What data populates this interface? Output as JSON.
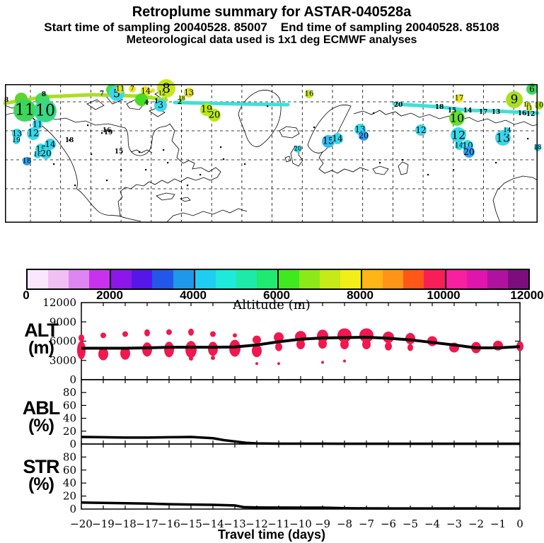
{
  "header": {
    "title": "Retroplume summary for ASTAR-040528a",
    "subtitle": "Start time of sampling 20040528. 85007    End time of sampling 20040528. 85108",
    "met_line": "Meteorological data used is 1x1 deg ECMWF analyses"
  },
  "colorbar": {
    "label": "Altitude (m)",
    "tick_labels": [
      "0",
      "2000",
      "4000",
      "6000",
      "8000",
      "10000",
      "12000"
    ],
    "colors": [
      "#fbe7fb",
      "#f2bff5",
      "#df85f2",
      "#c832ef",
      "#8d17e9",
      "#5517e9",
      "#2456e9",
      "#1f97ea",
      "#1fccf2",
      "#1fe9da",
      "#1fe9a6",
      "#1fe96e",
      "#3fe91f",
      "#8ce918",
      "#c6e918",
      "#f2ee18",
      "#ffb418",
      "#ff9518",
      "#ff5718",
      "#f81f58",
      "#f81fa0",
      "#e015ae",
      "#b012a0",
      "#7c0e7c"
    ]
  },
  "map": {
    "trajectories": [
      {
        "c": "#a8e020",
        "w": 5,
        "pts": [
          [
            0,
            27
          ],
          [
            55,
            18
          ],
          [
            125,
            15
          ],
          [
            190,
            17
          ],
          [
            228,
            22
          ]
        ]
      },
      {
        "c": "#3ee0d8",
        "w": 5,
        "pts": [
          [
            240,
            26
          ],
          [
            330,
            28
          ],
          [
            400,
            29
          ]
        ]
      },
      {
        "c": "#3ee0d8",
        "w": 5,
        "pts": [
          [
            550,
            28
          ],
          [
            613,
            32
          ],
          [
            653,
            37
          ],
          [
            693,
            38
          ],
          [
            753,
            41
          ]
        ]
      }
    ],
    "markers": [
      {
        "t": "",
        "x": 23,
        "y": 21,
        "r": 9,
        "c": "#5fd42f",
        "fs": 0
      },
      {
        "t": "",
        "x": 53,
        "y": 22,
        "r": 10,
        "c": "#46d963",
        "fs": 0
      },
      {
        "t": "11",
        "x": 28,
        "y": 37,
        "r": 16,
        "c": "#3cd75a",
        "fs": 22
      },
      {
        "t": "10",
        "x": 57,
        "y": 38,
        "r": 16,
        "c": "#38d987",
        "fs": 22
      },
      {
        "t": "11",
        "x": 46,
        "y": 57,
        "r": 7,
        "c": "#38d8ea",
        "fs": 11
      },
      {
        "t": "12",
        "x": 40,
        "y": 70,
        "r": 9,
        "c": "#38d8ea",
        "fs": 13
      },
      {
        "t": "13",
        "x": 17,
        "y": 70,
        "r": 7,
        "c": "#38d8ea",
        "fs": 11
      },
      {
        "t": "19",
        "x": 16,
        "y": 80,
        "r": 5,
        "c": "#38d8ea",
        "fs": 9
      },
      {
        "t": "14",
        "x": 64,
        "y": 85,
        "r": 8,
        "c": "#38d8ea",
        "fs": 12
      },
      {
        "t": "15",
        "x": 51,
        "y": 92,
        "r": 8,
        "c": "#38d8ea",
        "fs": 12
      },
      {
        "t": "16",
        "x": 46,
        "y": 100,
        "r": 5,
        "c": "#38d8ea",
        "fs": 9
      },
      {
        "t": "20",
        "x": 58,
        "y": 98,
        "r": 8,
        "c": "#38d8ea",
        "fs": 12
      },
      {
        "t": "18",
        "x": 31,
        "y": 109,
        "r": 6,
        "c": "#2f9ff2",
        "fs": 10
      },
      {
        "t": "",
        "x": 151,
        "y": 8,
        "r": 8,
        "c": "#44dd44",
        "fs": 0
      },
      {
        "t": "5",
        "x": 158,
        "y": 13,
        "r": 11,
        "c": "#38d8ea",
        "fs": 16
      },
      {
        "t": "11",
        "x": 163,
        "y": 7,
        "r": 6,
        "c": "#d8e828",
        "fs": 10
      },
      {
        "t": "7",
        "x": 180,
        "y": 7,
        "r": 5,
        "c": "#e8e428",
        "fs": 9
      },
      {
        "t": "14",
        "x": 199,
        "y": 10,
        "r": 7,
        "c": "#e4e428",
        "fs": 11
      },
      {
        "t": "",
        "x": 209,
        "y": 9,
        "r": 3,
        "c": "#d8e428",
        "fs": 0
      },
      {
        "t": "8",
        "x": 228,
        "y": 6,
        "r": 13,
        "c": "#c8e818",
        "fs": 19
      },
      {
        "t": "12",
        "x": 222,
        "y": 13,
        "r": 4,
        "c": "#b8e428",
        "fs": 8
      },
      {
        "t": "13",
        "x": 260,
        "y": 12,
        "r": 7,
        "c": "#e0e028",
        "fs": 11
      },
      {
        "t": "",
        "x": 193,
        "y": 22,
        "r": 9,
        "c": "#44dd22",
        "fs": 0
      },
      {
        "t": "3",
        "x": 220,
        "y": 30,
        "r": 9,
        "c": "#38d8ea",
        "fs": 13
      },
      {
        "t": "18",
        "x": 250,
        "y": 20,
        "r": 4,
        "c": "#b8e818",
        "fs": 8
      },
      {
        "t": "19",
        "x": 285,
        "y": 36,
        "r": 9,
        "c": "#b8e818",
        "fs": 13
      },
      {
        "t": "20",
        "x": 296,
        "y": 44,
        "r": 9,
        "c": "#b8e818",
        "fs": 13
      },
      {
        "t": "16",
        "x": 430,
        "y": 14,
        "r": 6,
        "c": "#c8e428",
        "fs": 10
      },
      {
        "t": "17",
        "x": 642,
        "y": 20,
        "r": 6,
        "c": "#e8e428",
        "fs": 10
      },
      {
        "t": "15",
        "x": 457,
        "y": 81,
        "r": 9,
        "c": "#35b9f0",
        "fs": 13
      },
      {
        "t": "14",
        "x": 470,
        "y": 77,
        "r": 8,
        "c": "#38d8ea",
        "fs": 12
      },
      {
        "t": "20",
        "x": 414,
        "y": 92,
        "r": 5,
        "c": "#38d8ea",
        "fs": 9
      },
      {
        "t": "13",
        "x": 502,
        "y": 64,
        "r": 8,
        "c": "#38d8ea",
        "fs": 12
      },
      {
        "t": "20",
        "x": 507,
        "y": 73,
        "r": 7,
        "c": "#2f9ff2",
        "fs": 11
      },
      {
        "t": "12",
        "x": 588,
        "y": 65,
        "r": 8,
        "c": "#38d8ea",
        "fs": 12
      },
      {
        "t": "10",
        "x": 639,
        "y": 48,
        "r": 11,
        "c": "#66dd33",
        "fs": 16
      },
      {
        "t": "12",
        "x": 641,
        "y": 72,
        "r": 11,
        "c": "#38d8ea",
        "fs": 16
      },
      {
        "t": "14",
        "x": 642,
        "y": 87,
        "r": 6,
        "c": "#38d8ea",
        "fs": 10
      },
      {
        "t": "10",
        "x": 654,
        "y": 87,
        "r": 8,
        "c": "#38d8ea",
        "fs": 12
      },
      {
        "t": "20",
        "x": 656,
        "y": 96,
        "r": 8,
        "c": "#2f9ff2",
        "fs": 12
      },
      {
        "t": "13",
        "x": 704,
        "y": 76,
        "r": 11,
        "c": "#38d8ea",
        "fs": 16
      },
      {
        "t": "14",
        "x": 710,
        "y": 66,
        "r": 5,
        "c": "#38d8ea",
        "fs": 9
      },
      {
        "t": "6",
        "x": 745,
        "y": 7,
        "r": 8,
        "c": "#3cd75a",
        "fs": 12
      },
      {
        "t": "9",
        "x": 720,
        "y": 22,
        "r": 12,
        "c": "#aade22",
        "fs": 17
      },
      {
        "t": "10",
        "x": 738,
        "y": 29,
        "r": 4,
        "c": "#c8e428",
        "fs": 8
      },
      {
        "t": "11",
        "x": 741,
        "y": 34,
        "r": 4,
        "c": "#c8e428",
        "fs": 8
      },
      {
        "t": "10",
        "x": 755,
        "y": 30,
        "r": 6,
        "c": "#aade22",
        "fs": 10
      },
      {
        "t": "18",
        "x": 753,
        "y": 90,
        "r": 5,
        "c": "#38d8ea",
        "fs": 9
      }
    ],
    "line_labels": [
      {
        "t": "8",
        "x": 2,
        "y": 23
      },
      {
        "t": "8",
        "x": 55,
        "y": 15
      },
      {
        "t": "7",
        "x": 137,
        "y": 14
      },
      {
        "t": "4",
        "x": 200,
        "y": 27
      },
      {
        "t": "1",
        "x": 214,
        "y": 25
      },
      {
        "t": "2",
        "x": 247,
        "y": 26
      },
      {
        "t": "20",
        "x": 556,
        "y": 30
      },
      {
        "t": "18",
        "x": 614,
        "y": 33
      },
      {
        "t": "15",
        "x": 632,
        "y": 38
      },
      {
        "t": "14",
        "x": 654,
        "y": 38
      },
      {
        "t": "13",
        "x": 694,
        "y": 40
      },
      {
        "t": "16",
        "x": 731,
        "y": 42
      },
      {
        "t": "12",
        "x": 743,
        "y": 43
      },
      {
        "t": "16",
        "x": 144,
        "y": 66
      },
      {
        "t": "15",
        "x": 161,
        "y": 96
      },
      {
        "t": "19",
        "x": 146,
        "y": 69
      },
      {
        "t": "18",
        "x": 91,
        "y": 80
      },
      {
        "t": "17",
        "x": 676,
        "y": 40
      }
    ],
    "dots": [
      [
        116,
        57
      ],
      [
        136,
        68
      ],
      [
        90,
        78
      ],
      [
        68,
        112
      ],
      [
        98,
        142
      ],
      [
        121,
        98
      ],
      [
        189,
        95
      ],
      [
        229,
        110
      ],
      [
        143,
        135
      ],
      [
        163,
        120
      ],
      [
        198,
        120
      ],
      [
        223,
        92
      ],
      [
        275,
        127
      ],
      [
        308,
        105
      ],
      [
        338,
        112
      ],
      [
        529,
        110
      ],
      [
        561,
        106
      ],
      [
        597,
        127
      ],
      [
        633,
        120
      ],
      [
        693,
        110
      ],
      [
        738,
        76
      ],
      [
        436,
        60
      ],
      [
        520,
        40
      ],
      [
        370,
        30
      ],
      [
        257,
        142
      ],
      [
        304,
        88
      ]
    ]
  },
  "chart_data": [
    {
      "type": "scatter",
      "name": "ALT",
      "ylabel_line1": "ALT",
      "ylabel_line2": "(m)",
      "ylim": [
        0,
        12000
      ],
      "yticks": [
        0,
        3000,
        6000,
        9000,
        12000
      ],
      "line": [
        [
          -20,
          4900
        ],
        [
          -19,
          4900
        ],
        [
          -18,
          4900
        ],
        [
          -17,
          4950
        ],
        [
          -16,
          5050
        ],
        [
          -15,
          5050
        ],
        [
          -14,
          5050
        ],
        [
          -13,
          5100
        ],
        [
          -12,
          5400
        ],
        [
          -11,
          5900
        ],
        [
          -10,
          6300
        ],
        [
          -9,
          6500
        ],
        [
          -8,
          6550
        ],
        [
          -7,
          6600
        ],
        [
          -6,
          6450
        ],
        [
          -5,
          6200
        ],
        [
          -4,
          5800
        ],
        [
          -3,
          5400
        ],
        [
          -2,
          4950
        ],
        [
          -1,
          4950
        ],
        [
          0,
          5150
        ]
      ],
      "blob_color": "#f2174e",
      "blobs": [
        [
          -20,
          6500,
          4,
          5
        ],
        [
          -20,
          4600,
          6,
          13
        ],
        [
          -19,
          6900,
          4,
          4
        ],
        [
          -19,
          4000,
          7,
          9
        ],
        [
          -18,
          7100,
          4,
          4
        ],
        [
          -18,
          4100,
          7,
          9
        ],
        [
          -17,
          7300,
          4,
          5
        ],
        [
          -17,
          4700,
          7,
          10
        ],
        [
          -16,
          7400,
          4,
          4
        ],
        [
          -16,
          4700,
          7,
          11
        ],
        [
          -15,
          7400,
          4,
          5
        ],
        [
          -15,
          4700,
          8,
          12
        ],
        [
          -15,
          3300,
          3,
          3
        ],
        [
          -14,
          7100,
          4,
          4
        ],
        [
          -14,
          4800,
          7,
          10
        ],
        [
          -14,
          3400,
          3,
          3
        ],
        [
          -13,
          6900,
          3,
          3
        ],
        [
          -13,
          4900,
          8,
          12
        ],
        [
          -12,
          6200,
          6,
          6
        ],
        [
          -12,
          4500,
          7,
          9
        ],
        [
          -12,
          2500,
          2,
          2
        ],
        [
          -11,
          6600,
          7,
          7
        ],
        [
          -11,
          5100,
          5,
          6
        ],
        [
          -11,
          2500,
          2,
          2
        ],
        [
          -10,
          6700,
          8,
          8
        ],
        [
          -10,
          5500,
          6,
          7
        ],
        [
          -9,
          6800,
          8,
          9
        ],
        [
          -9,
          5600,
          6,
          7
        ],
        [
          -9,
          2700,
          2,
          2
        ],
        [
          -8,
          6900,
          10,
          10
        ],
        [
          -8,
          5500,
          6,
          7
        ],
        [
          -8,
          2900,
          2,
          2
        ],
        [
          -7,
          6900,
          10,
          10
        ],
        [
          -7,
          5500,
          6,
          7
        ],
        [
          -6,
          6600,
          8,
          8
        ],
        [
          -6,
          5200,
          5,
          6
        ],
        [
          -5,
          6400,
          7,
          8
        ],
        [
          -5,
          5000,
          4,
          5
        ],
        [
          -4,
          6000,
          7,
          7
        ],
        [
          -3,
          5000,
          7,
          7
        ],
        [
          -2,
          5000,
          7,
          8
        ],
        [
          -1,
          5300,
          7,
          7
        ],
        [
          0,
          5200,
          5,
          7
        ]
      ]
    },
    {
      "type": "line",
      "name": "ABL",
      "ylabel_line1": "ABL",
      "ylabel_line2": "(%)",
      "ylim": [
        0,
        100
      ],
      "yticks": [
        0,
        20,
        40,
        60,
        80
      ],
      "line": [
        [
          -20,
          11
        ],
        [
          -19,
          10.5
        ],
        [
          -18,
          10
        ],
        [
          -17,
          10
        ],
        [
          -16,
          10.5
        ],
        [
          -15,
          11
        ],
        [
          -14,
          9
        ],
        [
          -13.5,
          6
        ],
        [
          -13,
          4
        ],
        [
          -12.5,
          2
        ],
        [
          -12,
          1
        ],
        [
          -11,
          0.6
        ],
        [
          -10,
          0.5
        ],
        [
          -9,
          0.5
        ],
        [
          -8,
          0.4
        ],
        [
          -7,
          0.4
        ],
        [
          -6,
          0.4
        ],
        [
          -5,
          0.4
        ],
        [
          -4,
          0.4
        ],
        [
          -3,
          0.4
        ],
        [
          -2,
          0.4
        ],
        [
          -1,
          0.4
        ],
        [
          0,
          0.4
        ]
      ]
    },
    {
      "type": "line",
      "name": "STR",
      "ylabel_line1": "STR",
      "ylabel_line2": "(%)",
      "ylim": [
        0,
        100
      ],
      "yticks": [
        0,
        20,
        40,
        60,
        80
      ],
      "line": [
        [
          -20,
          10
        ],
        [
          -19,
          9.5
        ],
        [
          -18,
          9
        ],
        [
          -17,
          8.5
        ],
        [
          -16,
          7.5
        ],
        [
          -15,
          7
        ],
        [
          -14,
          6.5
        ],
        [
          -13,
          5.5
        ],
        [
          -12.6,
          3
        ],
        [
          -12,
          2.5
        ],
        [
          -11,
          2.3
        ],
        [
          -10,
          2.2
        ],
        [
          -9,
          2.2
        ],
        [
          -8,
          1.3
        ],
        [
          -7,
          1.1
        ],
        [
          -6,
          1
        ],
        [
          -5,
          1
        ],
        [
          -4,
          1
        ],
        [
          -3,
          1
        ],
        [
          -2,
          1
        ],
        [
          -1,
          0.9
        ],
        [
          0,
          0.9
        ]
      ]
    }
  ],
  "x_axis": {
    "label": "Travel time (days)",
    "xlim": [
      -20,
      0
    ],
    "tick_labels": [
      "−20",
      "−19",
      "−18",
      "−17",
      "−16",
      "−15",
      "−14",
      "−13",
      "−12",
      "−11",
      "−10",
      "−9",
      "−8",
      "−7",
      "−6",
      "−5",
      "−4",
      "−3",
      "−2",
      "−1",
      "0"
    ]
  }
}
